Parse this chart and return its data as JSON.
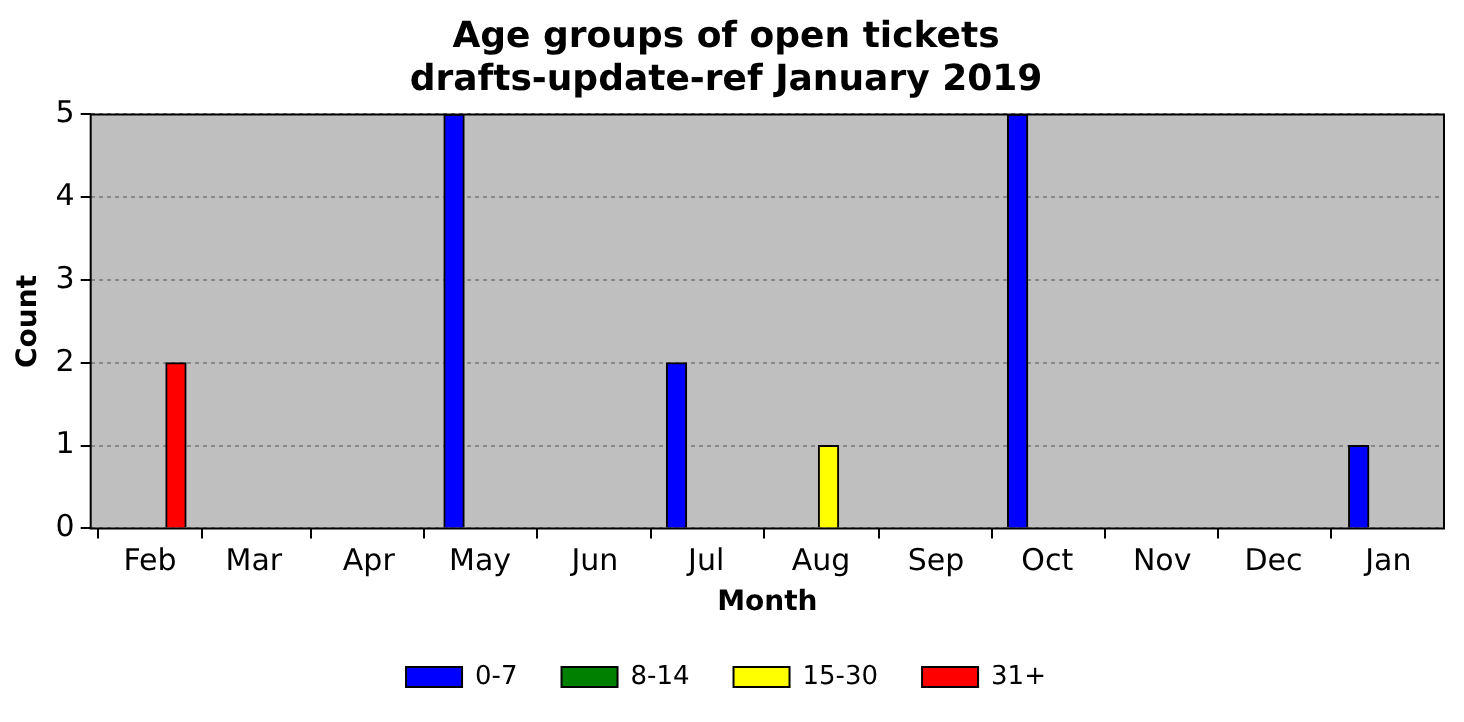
{
  "chart_data": {
    "type": "bar",
    "title": "Age groups of open tickets",
    "subtitle": "drafts-update-ref January 2019",
    "xlabel": "Month",
    "ylabel": "Count",
    "xlim": [
      "2018-01-16",
      "2019-01-16"
    ],
    "xticks": [
      {
        "value": "2018-02-01",
        "label": "Feb"
      },
      {
        "value": "2018-03-01",
        "label": "Mar"
      },
      {
        "value": "2018-04-01",
        "label": "Apr"
      },
      {
        "value": "2018-05-01",
        "label": "May"
      },
      {
        "value": "2018-06-01",
        "label": "Jun"
      },
      {
        "value": "2018-07-01",
        "label": "Jul"
      },
      {
        "value": "2018-08-01",
        "label": "Aug"
      },
      {
        "value": "2018-09-01",
        "label": "Sep"
      },
      {
        "value": "2018-10-01",
        "label": "Oct"
      },
      {
        "value": "2018-11-01",
        "label": "Nov"
      },
      {
        "value": "2018-12-01",
        "label": "Dec"
      },
      {
        "value": "2019-01-01",
        "label": "Jan"
      }
    ],
    "ylim": [
      0,
      5
    ],
    "yticks": [
      0,
      1,
      2,
      3,
      4,
      5
    ],
    "grid": "y",
    "legend": "bottom",
    "series": [
      {
        "name": "0-7",
        "color": "#0000ff",
        "x": [
          "2018-04-24",
          "2018-06-23",
          "2018-09-23",
          "2018-12-24"
        ],
        "values": [
          5,
          2,
          5,
          1
        ]
      },
      {
        "name": "8-14",
        "color": "#008000"
      },
      {
        "name": "15-30",
        "color": "#ffff00",
        "x": [
          "2018-08-03"
        ],
        "values": [
          1
        ]
      },
      {
        "name": "31+",
        "color": "#ff0000",
        "x": [
          "2018-02-08"
        ],
        "values": [
          2
        ]
      }
    ]
  }
}
